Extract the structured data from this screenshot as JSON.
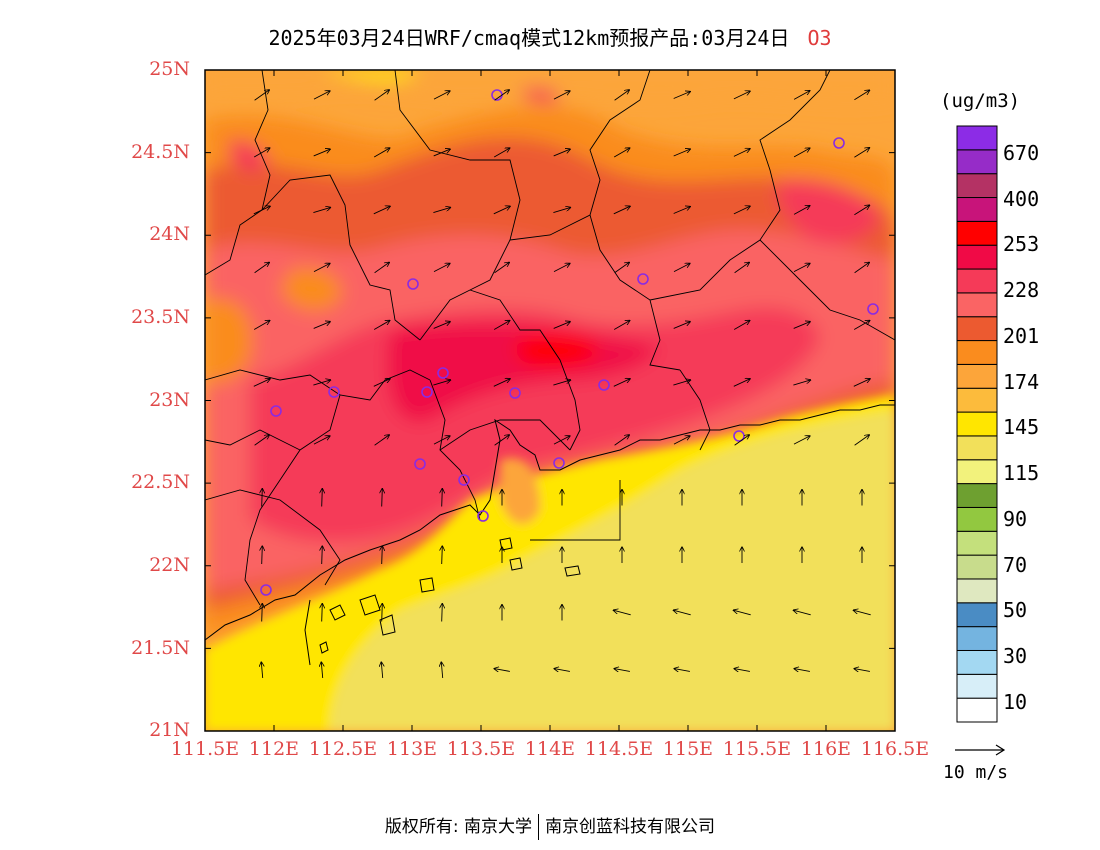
{
  "title": {
    "text": "2025年03月24日WRF/cmaq模式12km预报产品:03月24日",
    "pollutant": "O3"
  },
  "map": {
    "lat_labels": [
      "25N",
      "24.5N",
      "24N",
      "23.5N",
      "23N",
      "22.5N",
      "22N",
      "21.5N",
      "21N"
    ],
    "lon_labels": [
      "111.5E",
      "112E",
      "112.5E",
      "113E",
      "113.5E",
      "114E",
      "114.5E",
      "115E",
      "115.5E",
      "116E",
      "116.5E"
    ],
    "lat_range": [
      21,
      25
    ],
    "lon_range": [
      111.5,
      116.5
    ],
    "station_marker_color": "#8a2be2",
    "boundary_color": "#000000"
  },
  "colorbar": {
    "unit": "(ug/m3)",
    "colors": [
      "#ffffff",
      "#d7eef8",
      "#a3d8f2",
      "#74b4e0",
      "#4a8cc4",
      "#dfe8c0",
      "#c8dc8c",
      "#c4e07c",
      "#92c840",
      "#6ea030",
      "#f2f27c",
      "#f2e05a",
      "#ffe600",
      "#fcbb3c",
      "#fca53a",
      "#fa8c1e",
      "#ec5a30",
      "#fa6464",
      "#f53a58",
      "#f00a46",
      "#ff0000",
      "#c8147a",
      "#b43264",
      "#962cc8",
      "#8c2ce6"
    ],
    "labels": [
      "10",
      "30",
      "50",
      "70",
      "90",
      "115",
      "145",
      "174",
      "201",
      "228",
      "253",
      "400",
      "670"
    ]
  },
  "wind": {
    "reference_label": "10 m/s"
  },
  "footer": {
    "left": "版权所有: 南京大学",
    "right": "南京创蓝科技有限公司"
  }
}
